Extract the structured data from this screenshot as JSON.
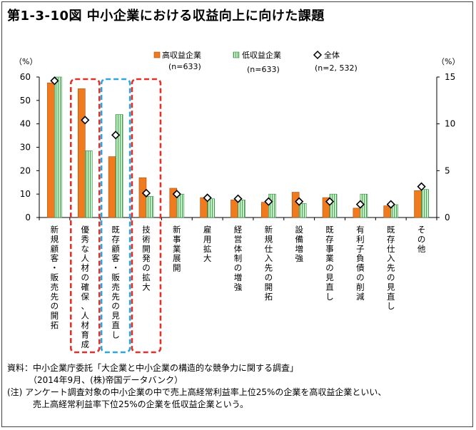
{
  "title": "第1-3-10図 中小企業における収益向上に向けた課題",
  "chart_data": {
    "type": "bar",
    "y_unit_left": "（%）",
    "y_unit_right": "（%）",
    "ylim_left": [
      0,
      60
    ],
    "yticks_left": [
      "0",
      "10",
      "20",
      "30",
      "40",
      "50",
      "60"
    ],
    "ylim_right": [
      0,
      15
    ],
    "yticks_right": [
      "0",
      "5",
      "10",
      "15"
    ],
    "legend": [
      {
        "name": "高収益企業",
        "sub": "(n=633)",
        "color": "#f07a1e"
      },
      {
        "name": "低収益企業",
        "sub": "(n=633)",
        "color": "#c8f0c8"
      },
      {
        "name": "全体",
        "sub": "(n=2, 532)"
      }
    ],
    "categories": [
      "新規顧客・販売先の開拓",
      "優秀な人材の確保、人材育成",
      "既存顧客・販売先の見直し",
      "技術開発の拡大",
      "新事業展開",
      "雇用拡大",
      "経営体制の増強",
      "新規仕入先の開拓",
      "設備増強",
      "既存事業の見直し",
      "有利子負債の削減",
      "既存仕入先の見直し",
      "その他"
    ],
    "series": [
      {
        "name": "高収益企業",
        "axis": "left",
        "values": [
          57.5,
          55.0,
          26.0,
          17.0,
          12.5,
          8.5,
          7.5,
          6.5,
          10.8,
          8.5,
          4.0,
          5.0,
          11.5
        ]
      },
      {
        "name": "低収益企業",
        "axis": "left",
        "values": [
          60.0,
          28.5,
          44.0,
          9.0,
          10.0,
          8.0,
          7.5,
          10.0,
          6.0,
          10.0,
          10.0,
          5.5,
          12.0
        ]
      },
      {
        "name": "全体",
        "axis": "right",
        "values": [
          14.6,
          10.4,
          8.8,
          2.6,
          2.5,
          2.1,
          2.0,
          1.7,
          1.7,
          1.7,
          1.4,
          1.4,
          3.3
        ]
      }
    ],
    "highlights": [
      {
        "category_index": 1,
        "style": "dashed",
        "color": "#e0312b"
      },
      {
        "category_index": 2,
        "style": "dashed",
        "color": "#2aa7df"
      },
      {
        "category_index": 3,
        "style": "dashed",
        "color": "#e0312b"
      }
    ]
  },
  "notes": [
    "資料：中小企業庁委託「大企業と中小企業の構造的な競争力に関する調査」",
    "　　　（2014年9月、(株)帝国データバンク）",
    "(注) アンケート調査対象の中小企業の中で売上高経常利益率上位25%の企業を高収益企業といい、",
    "　　　売上高経常利益率下位25%の企業を低収益企業という。"
  ]
}
